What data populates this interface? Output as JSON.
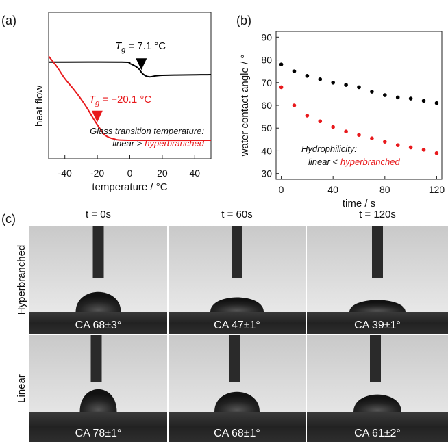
{
  "chart_data": [
    {
      "type": "line",
      "panel_label": "(a)",
      "x_label": "temperature / °C",
      "y_label": "heat flow",
      "xlim": [
        -50,
        50
      ],
      "xticks": [
        -40,
        -20,
        0,
        20,
        40
      ],
      "ylim": [
        0,
        10
      ],
      "series": [
        {
          "color": "#000000",
          "x": [
            -50,
            -5,
            0,
            5,
            8,
            12,
            20,
            50
          ],
          "values": [
            6.6,
            6.6,
            6.5,
            6.2,
            5.8,
            5.6,
            5.7,
            5.75
          ]
        },
        {
          "color": "#e8191c",
          "x": [
            -50,
            -45,
            -40,
            -35,
            -30,
            -26,
            -22,
            -18,
            -15,
            -10,
            0,
            50
          ],
          "values": [
            7.0,
            6.3,
            5.47,
            4.8,
            4.07,
            3.4,
            2.66,
            2.0,
            1.59,
            1.36,
            1.26,
            1.26
          ]
        }
      ],
      "annotations": [
        {
          "symbol": "T",
          "subscript": "g",
          "text": "= 7.1 °C",
          "x": 7.1,
          "color": "#000000"
        },
        {
          "symbol": "T",
          "subscript": "g",
          "text": "= −20.1 °C",
          "x": -20.1,
          "color": "#e8191c"
        }
      ],
      "note": {
        "line1": "Glass transition temperature:",
        "line2": "linear >",
        "highlight": "hyperbranched"
      }
    },
    {
      "type": "scatter",
      "panel_label": "(b)",
      "x_label": "time / s",
      "y_label": "water contact angle / °",
      "xlim": [
        -4,
        124
      ],
      "xticks": [
        0,
        40,
        80,
        120
      ],
      "ylim": [
        27.5,
        92.5
      ],
      "yticks": [
        30,
        40,
        50,
        60,
        70,
        80,
        90
      ],
      "x": [
        0,
        10,
        20,
        30,
        40,
        50,
        60,
        70,
        80,
        90,
        100,
        110,
        120
      ],
      "series": [
        {
          "color": "#000000",
          "values": [
            78,
            75,
            73,
            71.5,
            70,
            69,
            68,
            66,
            64.5,
            63.5,
            63,
            62,
            61
          ]
        },
        {
          "color": "#e8191c",
          "values": [
            68,
            60,
            55.5,
            53,
            50.5,
            48.5,
            47,
            45.5,
            44,
            42.5,
            41.5,
            40.5,
            39
          ]
        }
      ],
      "note": {
        "line1": "Hydrophilicity:",
        "line2": "linear <",
        "highlight": "hyperbranched"
      }
    }
  ],
  "photo_panel": {
    "panel_label": "(c)",
    "columns": [
      "t = 0s",
      "t = 60s",
      "t = 120s"
    ],
    "rows": [
      {
        "label": "Hyperbranched",
        "ca": [
          "CA 68±3°",
          "CA 47±1°",
          "CA 39±1°"
        ]
      },
      {
        "label": "Linear",
        "ca": [
          "CA 78±1°",
          "CA 68±1°",
          "CA 61±2°"
        ]
      }
    ]
  }
}
